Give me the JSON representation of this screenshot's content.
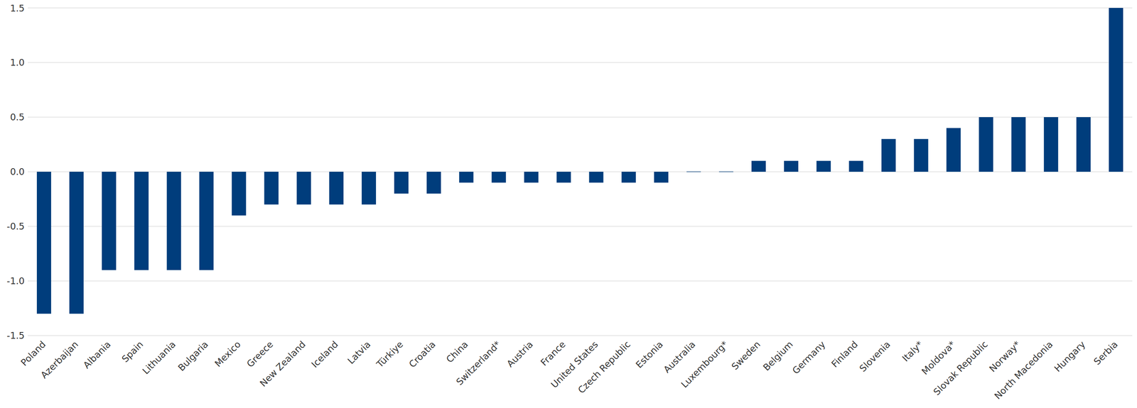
{
  "chart_data": {
    "type": "bar",
    "categories": [
      "Poland",
      "Azerbaijan",
      "Albania",
      "Spain",
      "Lithuania",
      "Bulgaria",
      "Mexico",
      "Greece",
      "New Zealand",
      "Iceland",
      "Latvia",
      "Türkiye",
      "Croatia",
      "China",
      "Switzerland*",
      "Austria",
      "France",
      "United States",
      "Czech Republic",
      "Estonia",
      "Australia",
      "Luxembourg*",
      "Sweden",
      "Belgium",
      "Germany",
      "Finland",
      "Slovenia",
      "Italy*",
      "Moldova*",
      "Slovak Republic",
      "Norway*",
      "North Macedonia",
      "Hungary",
      "Serbia"
    ],
    "values": [
      -1.3,
      -1.3,
      -0.9,
      -0.9,
      -0.9,
      -0.9,
      -0.4,
      -0.3,
      -0.3,
      -0.3,
      -0.3,
      -0.2,
      -0.2,
      -0.1,
      -0.1,
      -0.1,
      -0.1,
      -0.1,
      -0.1,
      -0.1,
      0,
      0,
      0.1,
      0.1,
      0.1,
      0.1,
      0.3,
      0.3,
      0.4,
      0.5,
      0.5,
      0.5,
      0.5,
      1.5
    ],
    "color": "#003d7c",
    "ylim": [
      -1.5,
      1.5
    ],
    "yticks": [
      -1.5,
      {
        "value": -1,
        "label": "-1.0"
      },
      -0.5,
      {
        "value": 0,
        "label": "0.0"
      },
      0.5,
      {
        "value": 1,
        "label": "1.0"
      },
      1.5
    ],
    "grid": true
  }
}
